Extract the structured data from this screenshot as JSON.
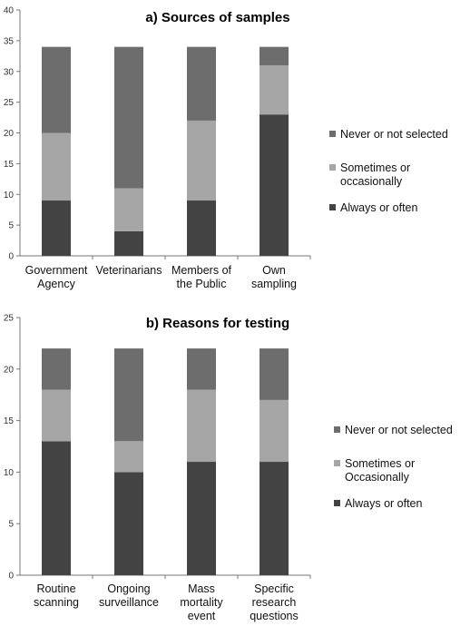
{
  "chart_data": [
    {
      "type": "bar",
      "stacked": true,
      "title": "a) Sources of samples",
      "categories": [
        [
          "Government",
          "Agency"
        ],
        [
          "Veterinarians"
        ],
        [
          "Members of",
          "the Public"
        ],
        [
          "Own",
          "sampling"
        ]
      ],
      "ylim": [
        0,
        40
      ],
      "yticks": [
        0,
        5,
        10,
        15,
        20,
        25,
        30,
        35,
        40
      ],
      "grid": false,
      "legend_position": "right",
      "series": [
        {
          "name": "Always or often",
          "color": "#434343",
          "values": [
            9,
            4,
            9,
            23
          ]
        },
        {
          "name": "Sometimes or occasionally",
          "legend_lines": [
            "Sometimes or",
            "occasionally"
          ],
          "color": "#a6a6a6",
          "values": [
            11,
            7,
            13,
            8
          ]
        },
        {
          "name": "Never or not selected",
          "color": "#6d6d6d",
          "values": [
            14,
            23,
            12,
            3
          ]
        }
      ]
    },
    {
      "type": "bar",
      "stacked": true,
      "title": "b) Reasons for testing",
      "categories": [
        [
          "Routine",
          "scanning"
        ],
        [
          "Ongoing",
          "surveillance"
        ],
        [
          "Mass",
          "mortality",
          "event"
        ],
        [
          "Specific",
          "research",
          "questions"
        ]
      ],
      "ylim": [
        0,
        25
      ],
      "yticks": [
        0,
        5,
        10,
        15,
        20,
        25
      ],
      "grid": false,
      "legend_position": "right",
      "series": [
        {
          "name": "Always or often",
          "color": "#434343",
          "values": [
            13,
            10,
            11,
            11
          ]
        },
        {
          "name": "Sometimes or Occasionally",
          "legend_lines": [
            "Sometimes or",
            "Occasionally"
          ],
          "color": "#a6a6a6",
          "values": [
            5,
            3,
            7,
            6
          ]
        },
        {
          "name": "Never or not selected",
          "color": "#6d6d6d",
          "values": [
            4,
            9,
            4,
            5
          ]
        }
      ]
    }
  ]
}
